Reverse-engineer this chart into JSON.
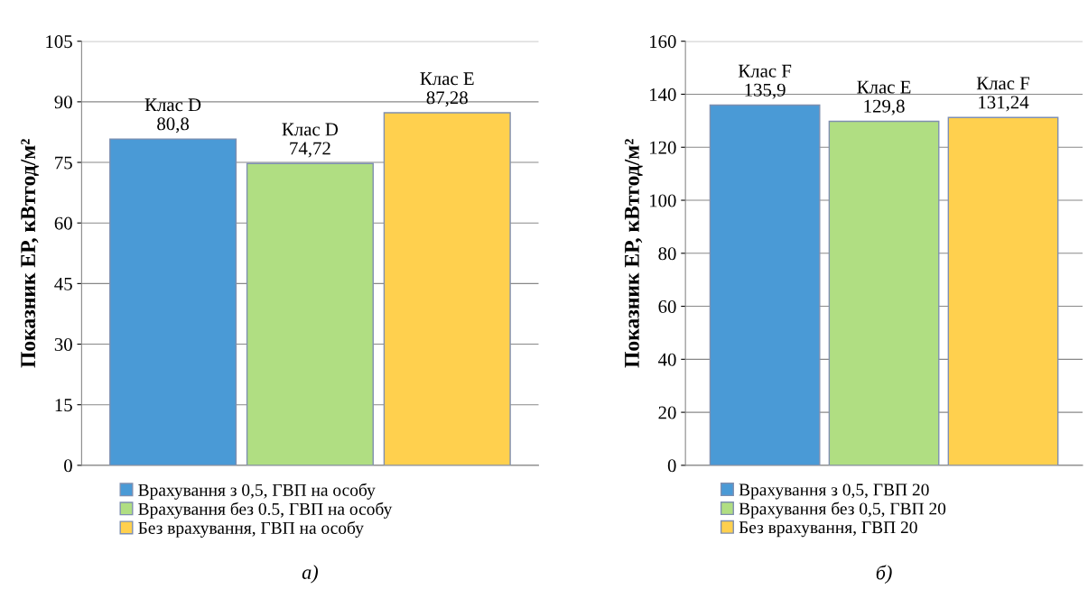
{
  "chart_data": [
    {
      "type": "bar",
      "categories": [
        null
      ],
      "ylabel": "Показник ЕР, кВтгод/м²",
      "ylim": [
        0,
        105
      ],
      "yticks": [
        0,
        15,
        30,
        45,
        60,
        75,
        90,
        105
      ],
      "grid": "y",
      "legend": "bottom",
      "annotations": [
        "а)"
      ],
      "series": [
        {
          "name": "Врахування з 0,5, ГВП на особу",
          "color": "#4a9ad6",
          "values": [
            80.8
          ],
          "value_labels": [
            "Клас D\n80,8"
          ]
        },
        {
          "name": "Врахування без 0.5, ГВП на особу",
          "color": "#b0de82",
          "values": [
            74.72
          ],
          "value_labels": [
            "Клас D\n74,72"
          ]
        },
        {
          "name": "Без врахування, ГВП на особу",
          "color": "#ffd04e",
          "values": [
            87.28
          ],
          "value_labels": [
            "Клас E\n87,28"
          ]
        }
      ]
    },
    {
      "type": "bar",
      "categories": [
        null
      ],
      "ylabel": "Показник ЕР, кВтгод/м²",
      "ylim": [
        0,
        160
      ],
      "yticks": [
        0,
        20,
        40,
        60,
        80,
        100,
        120,
        140,
        160
      ],
      "grid": "y",
      "legend": "bottom",
      "annotations": [
        "б)"
      ],
      "series": [
        {
          "name": "Врахування з 0,5, ГВП 20",
          "color": "#4a9ad6",
          "values": [
            135.9
          ],
          "value_labels": [
            "Клас F\n135,9"
          ]
        },
        {
          "name": "Врахування без 0,5, ГВП 20",
          "color": "#b0de82",
          "values": [
            129.8
          ],
          "value_labels": [
            "Клас E\n129,8"
          ]
        },
        {
          "name": "Без врахування, ГВП 20",
          "color": "#ffd04e",
          "values": [
            131.24
          ],
          "value_labels": [
            "Клас F\n131,24"
          ]
        }
      ]
    }
  ]
}
